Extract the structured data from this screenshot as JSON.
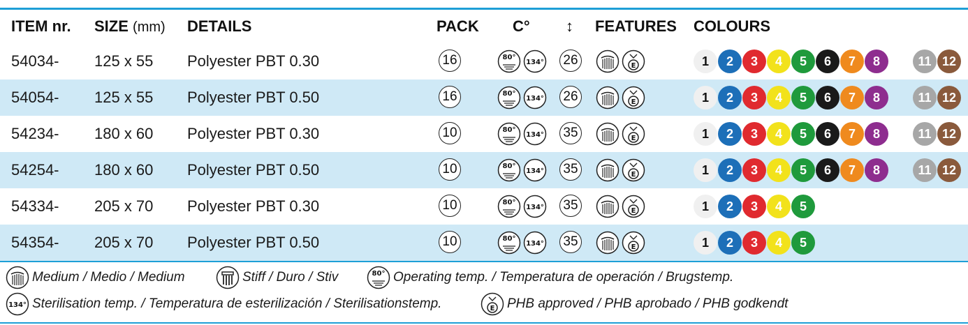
{
  "header": {
    "item": "ITEM nr.",
    "size": "SIZE",
    "size_unit": "(mm)",
    "details": "DETAILS",
    "pack": "PACK",
    "temp": "C°",
    "arrow": "↕",
    "features": "FEATURES",
    "colours": "COLOURS"
  },
  "rows": [
    {
      "item": "54034-",
      "size": "125 x 55",
      "details": "Polyester PBT 0.30",
      "pack": "16",
      "stack": "26",
      "colours": [
        "1",
        "2",
        "3",
        "4",
        "5",
        "6",
        "7",
        "8"
      ],
      "extra": [
        "11",
        "12"
      ]
    },
    {
      "item": "54054-",
      "size": "125 x 55",
      "details": "Polyester PBT 0.50",
      "pack": "16",
      "stack": "26",
      "colours": [
        "1",
        "2",
        "3",
        "4",
        "5",
        "6",
        "7",
        "8"
      ],
      "extra": [
        "11",
        "12"
      ]
    },
    {
      "item": "54234-",
      "size": "180 x 60",
      "details": "Polyester PBT 0.30",
      "pack": "10",
      "stack": "35",
      "colours": [
        "1",
        "2",
        "3",
        "4",
        "5",
        "6",
        "7",
        "8"
      ],
      "extra": [
        "11",
        "12"
      ]
    },
    {
      "item": "54254-",
      "size": "180 x 60",
      "details": "Polyester PBT 0.50",
      "pack": "10",
      "stack": "35",
      "colours": [
        "1",
        "2",
        "3",
        "4",
        "5",
        "6",
        "7",
        "8"
      ],
      "extra": [
        "11",
        "12"
      ]
    },
    {
      "item": "54334-",
      "size": "205 x 70",
      "details": "Polyester PBT 0.30",
      "pack": "10",
      "stack": "35",
      "colours": [
        "1",
        "2",
        "3",
        "4",
        "5"
      ],
      "extra": []
    },
    {
      "item": "54354-",
      "size": "205 x 70",
      "details": "Polyester PBT 0.50",
      "pack": "10",
      "stack": "35",
      "colours": [
        "1",
        "2",
        "3",
        "4",
        "5"
      ],
      "extra": []
    }
  ],
  "temp_icons": {
    "operating": "80°",
    "sterilisation": "134°"
  },
  "colour_map": {
    "1": {
      "bg": "#f0f0f0",
      "fg": "#111111"
    },
    "2": {
      "bg": "#1d6fb8",
      "fg": "#ffffff"
    },
    "3": {
      "bg": "#e02a2f",
      "fg": "#ffffff"
    },
    "4": {
      "bg": "#f2e21b",
      "fg": "#ffffff"
    },
    "5": {
      "bg": "#1f9a3c",
      "fg": "#ffffff"
    },
    "6": {
      "bg": "#1a1a1a",
      "fg": "#ffffff"
    },
    "7": {
      "bg": "#ef8a1e",
      "fg": "#ffffff"
    },
    "8": {
      "bg": "#8e2d8f",
      "fg": "#ffffff"
    },
    "11": {
      "bg": "#a7a7a7",
      "fg": "#ffffff"
    },
    "12": {
      "bg": "#8a5a3c",
      "fg": "#ffffff"
    }
  },
  "legend": {
    "medium": "Medium / Medio / Medium",
    "stiff": "Stiff / Duro / Stiv",
    "operating": "Operating temp. / Temperatura de operación / Brugstemp.",
    "sterilisation": "Sterilisation temp. / Temperatura de esterilización / Sterilisationstemp.",
    "phb": "PHB approved / PHB aprobado / PHB godkendt"
  },
  "accent_color": "#1e9fd6",
  "row_alt_color": "#cfe9f6"
}
